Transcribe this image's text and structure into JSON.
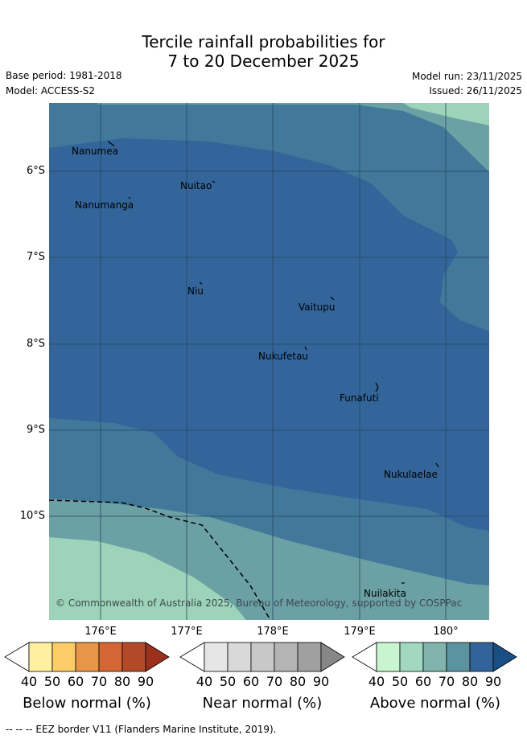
{
  "title": {
    "line1": "Tercile rainfall probabilities for",
    "line2": "7 to 20 December 2025"
  },
  "meta": {
    "base_period": "Base period: 1981-2018",
    "model": "Model: ACCESS-S2",
    "model_run": "Model run: 23/11/2025",
    "issued": "Issued: 26/11/2025"
  },
  "map": {
    "lat_labels": [
      "6°S",
      "7°S",
      "8°S",
      "9°S",
      "10°S"
    ],
    "lon_labels": [
      "176°E",
      "177°E",
      "178°E",
      "179°E",
      "180°"
    ],
    "islands": [
      {
        "name": "Nanumea"
      },
      {
        "name": "Nuitao"
      },
      {
        "name": "Nanumanga"
      },
      {
        "name": "Niu"
      },
      {
        "name": "Vaitupu"
      },
      {
        "name": "Nukufetau"
      },
      {
        "name": "Funafuti"
      },
      {
        "name": "Nukulaelae"
      },
      {
        "name": "Nuilakita"
      }
    ],
    "copyright": "© Commonwealth of Australia 2025, Bureau of Meteorology, supported by COSPPac"
  },
  "colorbars": [
    {
      "label": "Below normal (%)",
      "ticks": [
        "40",
        "50",
        "60",
        "70",
        "80",
        "90"
      ],
      "colors": [
        "#ffffff",
        "#fff0a0",
        "#fdcc66",
        "#e79548",
        "#d46535",
        "#b24a2a",
        "#9c2f1e"
      ]
    },
    {
      "label": "Near normal (%)",
      "ticks": [
        "40",
        "50",
        "60",
        "70",
        "80",
        "90"
      ],
      "colors": [
        "#ffffff",
        "#e6e6e6",
        "#d9d9d9",
        "#c8c8c8",
        "#b4b4b4",
        "#a0a0a0",
        "#878787"
      ]
    },
    {
      "label": "Above normal (%)",
      "ticks": [
        "40",
        "50",
        "60",
        "70",
        "80",
        "90"
      ],
      "colors": [
        "#ffffff",
        "#c8f5d0",
        "#a2d8c0",
        "#80b4ac",
        "#5c93a0",
        "#32649b",
        "#194f85"
      ]
    }
  ],
  "footer": "--  --  -- EEZ border V11 (Flanders Marine Institute, 2019)."
}
